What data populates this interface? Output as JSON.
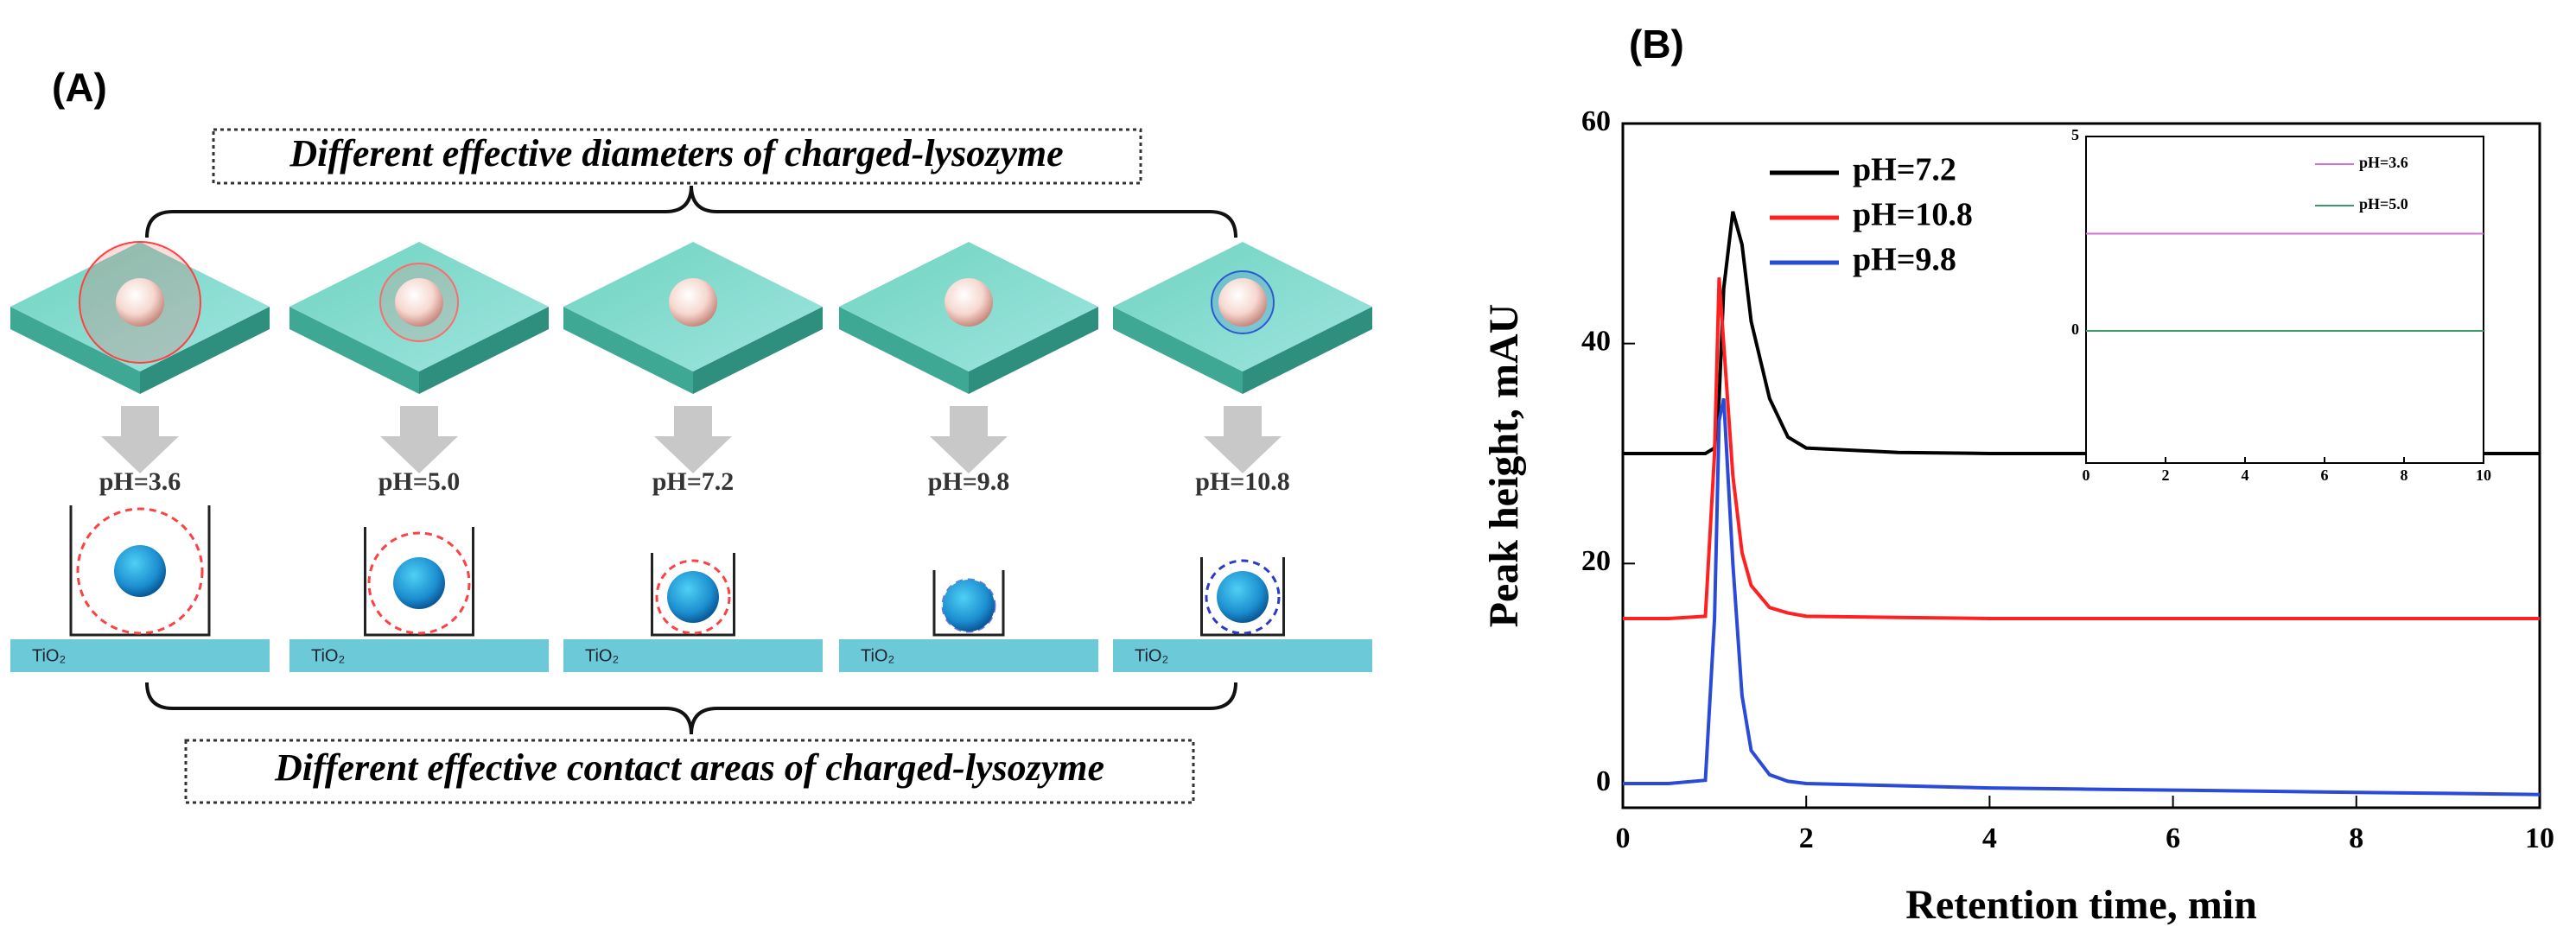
{
  "panel_a": {
    "label": "(A)",
    "top_caption": "Different effective diameters of charged-lysozyme",
    "bottom_caption": "Different effective contact areas of charged-lysozyme",
    "ph_labels": [
      "pH=3.6",
      "pH=5.0",
      "pH=7.2",
      "pH=9.8",
      "pH=10.8"
    ],
    "substrate_label": "TiO₂"
  },
  "panel_b": {
    "label": "(B)"
  },
  "chart_data": [
    {
      "type": "line",
      "xlabel": "Retention time, min",
      "ylabel": "Peak height, mAU",
      "x": [
        0,
        0.5,
        0.9,
        1.0,
        1.05,
        1.1,
        1.2,
        1.3,
        1.4,
        1.6,
        1.8,
        2,
        3,
        4,
        5,
        6,
        7,
        8,
        9,
        10
      ],
      "series": [
        {
          "name": "pH=7.2",
          "color": "#000000",
          "values": [
            30,
            30,
            30,
            30.5,
            35,
            45,
            52,
            49,
            42,
            35,
            31.5,
            30.5,
            30.1,
            30,
            30,
            30,
            30,
            30,
            30,
            30
          ]
        },
        {
          "name": "pH=10.8",
          "color": "#ff2020",
          "values": [
            15,
            15,
            15.2,
            30,
            46,
            40,
            28,
            21,
            18,
            16,
            15.5,
            15.2,
            15.1,
            15,
            15,
            15,
            15,
            15,
            15,
            15
          ]
        },
        {
          "name": "pH=9.8",
          "color": "#2a4bd7",
          "values": [
            0,
            0,
            0.3,
            15,
            33,
            35,
            20,
            8,
            3,
            0.8,
            0.2,
            0,
            -0.2,
            -0.4,
            -0.5,
            -0.6,
            -0.7,
            -0.8,
            -0.9,
            -1
          ]
        }
      ],
      "xlim": [
        0,
        10
      ],
      "xticks": [
        0,
        2,
        4,
        6,
        8,
        10
      ],
      "ylim": [
        -2.2,
        60
      ],
      "yticks": [
        0,
        20,
        40,
        60
      ],
      "legend": "upper left"
    },
    {
      "type": "line",
      "x": [
        0,
        10
      ],
      "series": [
        {
          "name": "pH=3.6",
          "color": "#d070d0",
          "values": [
            2.5,
            2.5
          ]
        },
        {
          "name": "pH=5.0",
          "color": "#3a9a6a",
          "values": [
            0,
            0
          ]
        }
      ],
      "xlim": [
        0,
        10
      ],
      "xticks": [
        0,
        2,
        4,
        6,
        8,
        10
      ],
      "ylim": [
        -3.4,
        5
      ],
      "yticks": [
        0,
        5
      ],
      "legend": "upper right"
    }
  ]
}
